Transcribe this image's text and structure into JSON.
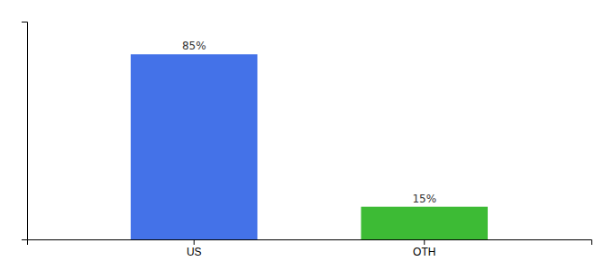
{
  "chart_data": {
    "type": "bar",
    "categories": [
      "US",
      "OTH"
    ],
    "values": [
      85,
      15
    ],
    "value_labels": [
      "85%",
      "15%"
    ],
    "colors": [
      "#4472e8",
      "#3dbb35"
    ],
    "ylim": [
      0,
      100
    ],
    "grid": false,
    "data_labels": true,
    "tick_labels": "x"
  }
}
